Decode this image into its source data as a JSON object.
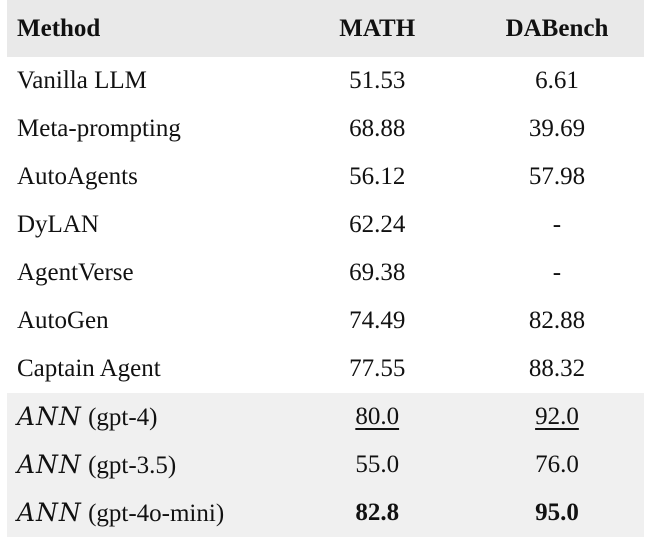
{
  "table": {
    "headers": {
      "method": "Method",
      "math": "MATH",
      "dabench": "DABench"
    },
    "rows": [
      {
        "method": "Vanilla LLM",
        "math": "51.53",
        "dabench": "6.61"
      },
      {
        "method": "Meta-prompting",
        "math": "68.88",
        "dabench": "39.69"
      },
      {
        "method": "AutoAgents",
        "math": "56.12",
        "dabench": "57.98"
      },
      {
        "method": "DyLAN",
        "math": "62.24",
        "dabench": "-"
      },
      {
        "method": "AgentVerse",
        "math": "69.38",
        "dabench": "-"
      },
      {
        "method": "AutoGen",
        "math": "74.49",
        "dabench": "82.88"
      },
      {
        "method": "Captain Agent",
        "math": "77.55",
        "dabench": "88.32"
      }
    ],
    "ours": [
      {
        "name": "ANN",
        "variant": "(gpt-4)",
        "math": "80.0",
        "dabench": "92.0",
        "style": "underline"
      },
      {
        "name": "ANN",
        "variant": "(gpt-3.5)",
        "math": "55.0",
        "dabench": "76.0",
        "style": "plain"
      },
      {
        "name": "ANN",
        "variant": "(gpt-4o-mini)",
        "math": "82.8",
        "dabench": "95.0",
        "style": "bold"
      }
    ]
  }
}
